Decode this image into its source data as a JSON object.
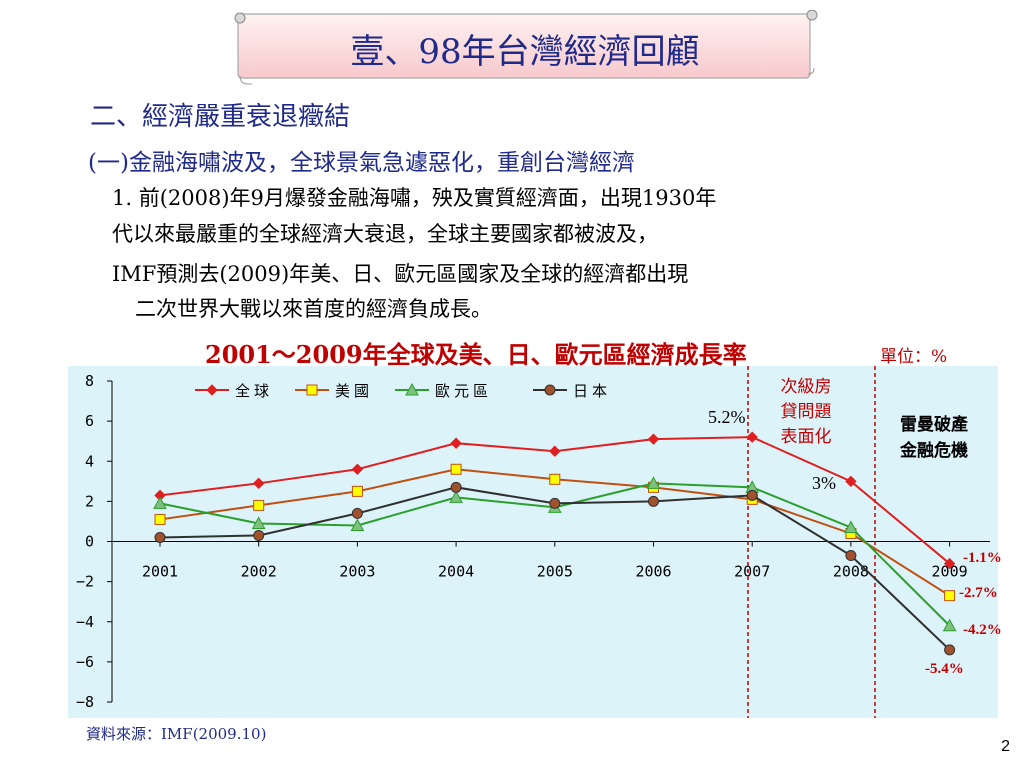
{
  "slide": {
    "title": "壹、98年台灣經濟回顧",
    "heading": "二、經濟嚴重衰退癥結",
    "subheading": "(一)金融海嘯波及，全球景氣急遽惡化，重創台灣經濟",
    "paragraph_lines": [
      "1. 前(2008)年9月爆發金融海嘯，殃及實質經濟面，出現1930年",
      "代以來最嚴重的全球經濟大衰退，全球主要國家都被波及，",
      "IMF預測去(2009)年美、日、歐元區國家及全球的經濟都出現",
      "二次世界大戰以來首度的經濟負成長。"
    ],
    "source": "資料來源：IMF(2009.10)",
    "page_number": "2"
  },
  "chart_data": {
    "type": "line",
    "title": "2001～2009年全球及美、日、歐元區經濟成長率",
    "unit_label": "單位：%",
    "categories": [
      "2001",
      "2002",
      "2003",
      "2004",
      "2005",
      "2006",
      "2007",
      "2008",
      "2009"
    ],
    "ylim": [
      -8,
      8
    ],
    "yticks": [
      8,
      6,
      4,
      2,
      0,
      -2,
      -4,
      -6,
      -8
    ],
    "legend_position": "top",
    "series": [
      {
        "name": "全球",
        "color": "#e02020",
        "marker": "diamond",
        "marker_fill": "#e02020",
        "values": [
          2.3,
          2.9,
          3.6,
          4.9,
          4.5,
          5.1,
          5.2,
          3.0,
          -1.1
        ]
      },
      {
        "name": "美國",
        "color": "#c05010",
        "marker": "square",
        "marker_fill": "#ffff00",
        "values": [
          1.1,
          1.8,
          2.5,
          3.6,
          3.1,
          2.7,
          2.1,
          0.4,
          -2.7
        ]
      },
      {
        "name": "歐元區",
        "color": "#2aa02a",
        "marker": "triangle",
        "marker_fill": "#7fbf7f",
        "values": [
          1.9,
          0.9,
          0.8,
          2.2,
          1.7,
          2.9,
          2.7,
          0.7,
          -4.2
        ]
      },
      {
        "name": "日本",
        "color": "#303030",
        "marker": "circle",
        "marker_fill": "#a0522d",
        "values": [
          0.2,
          0.3,
          1.4,
          2.7,
          1.9,
          2.0,
          2.3,
          -0.7,
          -5.4
        ]
      }
    ],
    "annotations": {
      "label_5_2": "5.2%",
      "label_3": "3%",
      "label_m1_1": "-1.1%",
      "label_m2_7": "-2.7%",
      "label_m4_2": "-4.2%",
      "label_m5_4": "-5.4%",
      "subprime_lines": [
        "次級房",
        "貸問題",
        "表面化"
      ],
      "lehman_lines": [
        "雷曼破產",
        "金融危機"
      ]
    },
    "colors": {
      "plot_background": "#ddf3fa",
      "annotation_red": "#c00000",
      "vline": "#c00000"
    }
  }
}
